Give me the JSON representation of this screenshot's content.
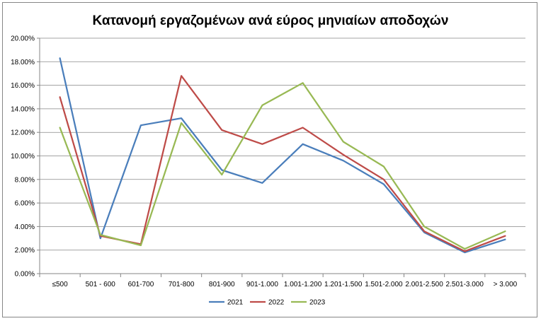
{
  "chart_data": {
    "type": "line",
    "title": "Κατανομή εργαζομένων ανά εύρος μηνιαίων αποδοχών",
    "xlabel": "",
    "ylabel": "",
    "categories": [
      "≤500",
      "501 - 600",
      "601-700",
      "701-800",
      "801-900",
      "901-1.000",
      "1.001-1.200",
      "1.201-1.500",
      "1.501-2.000",
      "2.001-2.500",
      "2.501-3.000",
      "> 3.000"
    ],
    "y_ticks": [
      "0.00%",
      "2.00%",
      "4.00%",
      "6.00%",
      "8.00%",
      "10.00%",
      "12.00%",
      "14.00%",
      "16.00%",
      "18.00%",
      "20.00%"
    ],
    "ylim": [
      0,
      20
    ],
    "grid": true,
    "legend_position": "bottom",
    "series": [
      {
        "name": "2021",
        "color": "#4a7ebb",
        "values": [
          18.3,
          3.0,
          12.6,
          13.2,
          8.8,
          7.7,
          11.0,
          9.6,
          7.6,
          3.5,
          1.8,
          2.9
        ]
      },
      {
        "name": "2022",
        "color": "#be4b48",
        "values": [
          15.0,
          3.2,
          2.5,
          16.8,
          12.2,
          11.0,
          12.4,
          10.1,
          8.0,
          3.6,
          1.9,
          3.2
        ]
      },
      {
        "name": "2023",
        "color": "#98b954",
        "values": [
          12.4,
          3.3,
          2.4,
          12.8,
          8.4,
          14.3,
          16.2,
          11.2,
          9.1,
          4.0,
          2.1,
          3.6
        ]
      }
    ]
  }
}
